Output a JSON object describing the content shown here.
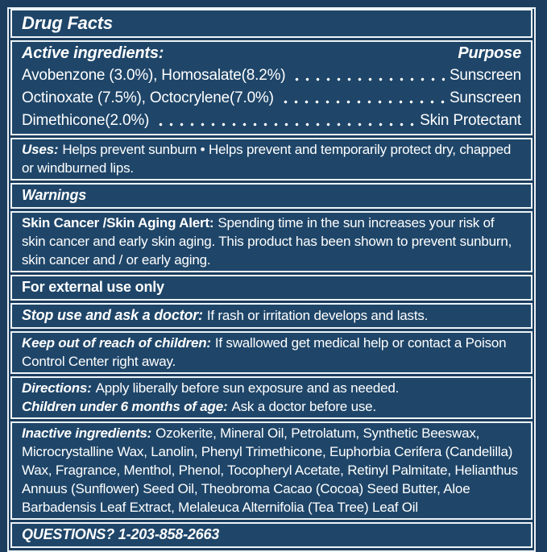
{
  "colors": {
    "background": "#1c3d5e",
    "panel": "#1f4669",
    "border": "#edf4f8",
    "text": "#ffffff"
  },
  "title": "Drug Facts",
  "active": {
    "heading": "Active ingredients:",
    "purpose_label": "Purpose",
    "rows": [
      {
        "name": "Avobenzone (3.0%), Homosalate(8.2%)",
        "purpose": "Sunscreen"
      },
      {
        "name": "Octinoxate (7.5%), Octocrylene(7.0%)",
        "purpose": "Sunscreen"
      },
      {
        "name": "Dimethicone(2.0%)",
        "purpose": "Skin Protectant"
      }
    ]
  },
  "uses": {
    "label": "Uses:",
    "text": "Helps prevent sunburn • Helps prevent and temporarily protect dry, chapped or windburned lips."
  },
  "warnings": {
    "heading": "Warnings"
  },
  "skin_alert": {
    "label": "Skin Cancer /Skin Aging Alert:",
    "text": "Spending time in the sun increases your risk of skin cancer and early skin aging. This product has been shown to prevent sunburn, skin cancer and / or early aging."
  },
  "external_use": {
    "text": "For external use only"
  },
  "stop_use": {
    "label": "Stop use and ask a doctor:",
    "text": "If rash or irritation develops and lasts."
  },
  "keep_out": {
    "label": "Keep out of reach of children:",
    "text": "If swallowed get medical help or contact a Poison Control Center right away."
  },
  "directions": {
    "label": "Directions:",
    "text": "Apply liberally before sun exposure and as needed."
  },
  "children": {
    "label": "Children under 6 months of age:",
    "text": "Ask a doctor before use."
  },
  "inactive": {
    "label": "Inactive ingredients:",
    "text": "Ozokerite, Mineral Oil, Petrolatum, Synthetic Beeswax, Microcrystalline Wax, Lanolin, Phenyl Trimethicone, Euphorbia Cerifera (Candelilla) Wax, Fragrance, Menthol, Phenol, Tocopheryl Acetate, Retinyl Palmitate, Helianthus Annuus (Sunflower) Seed Oil, Theobroma Cacao (Cocoa) Seed Butter, Aloe Barbadensis Leaf Extract, Melaleuca Alternifolia (Tea Tree) Leaf Oil"
  },
  "questions": {
    "text": "QUESTIONS? 1-203-858-2663"
  }
}
